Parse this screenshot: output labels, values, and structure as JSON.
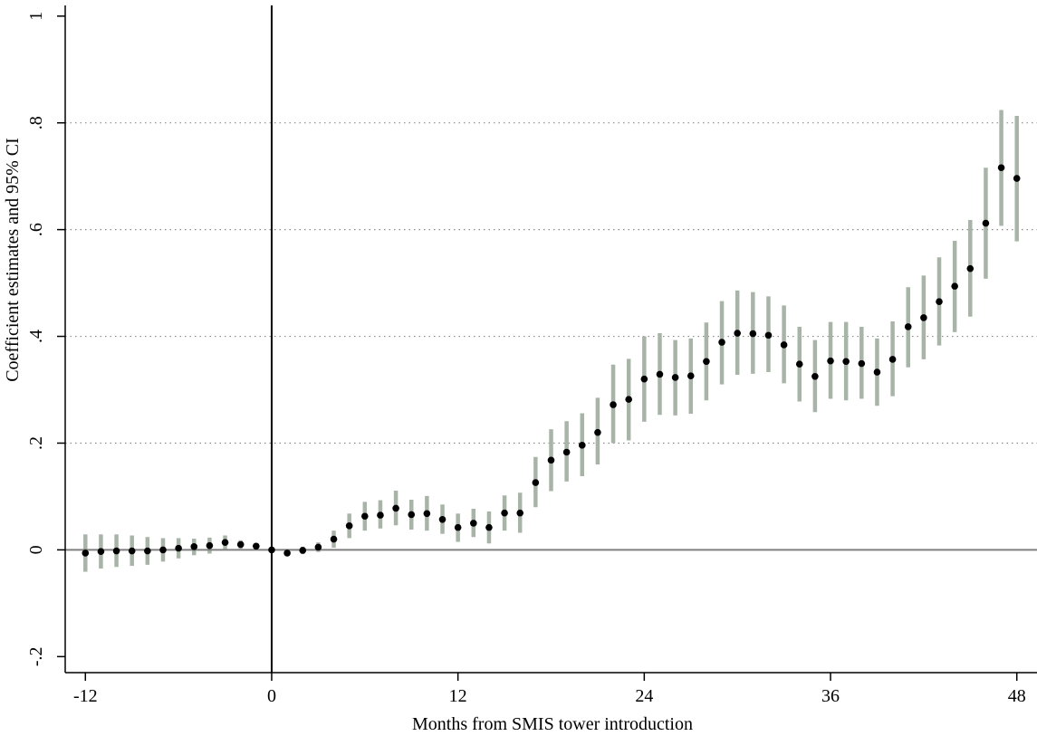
{
  "chart_data": {
    "type": "scatter",
    "title": "",
    "xlabel": "Months from SMIS tower introduction",
    "ylabel": "Coefficient estimates and 95% CI",
    "xlim": [
      -13.3,
      49.3
    ],
    "ylim": [
      -0.23,
      1.02
    ],
    "x_ticks": [
      -12,
      0,
      12,
      24,
      36,
      48
    ],
    "y_ticks": [
      -0.2,
      0,
      0.2,
      0.4,
      0.6,
      0.8,
      1
    ],
    "y_tick_labels": [
      "-.2",
      "0",
      ".2",
      ".4",
      ".6",
      ".8",
      "1"
    ],
    "grid": {
      "horizontal_dotted_at": [
        0.2,
        0.4,
        0.6,
        0.8
      ]
    },
    "reference_lines": {
      "x": 0,
      "y": 0
    },
    "colors": {
      "point": "#000000",
      "ci_bar": "#a9b4a9",
      "zero_line": "#7f7f7f",
      "grid": "#8a8a8a"
    },
    "series": [
      {
        "x": [
          -12,
          -11,
          -10,
          -9,
          -8,
          -7,
          -6,
          -5,
          -4,
          -3,
          -2,
          -1,
          0,
          1,
          2,
          3,
          4,
          5,
          6,
          7,
          8,
          9,
          10,
          11,
          12,
          13,
          14,
          15,
          16,
          17,
          18,
          19,
          20,
          21,
          22,
          23,
          24,
          25,
          26,
          27,
          28,
          29,
          30,
          31,
          32,
          33,
          34,
          35,
          36,
          37,
          38,
          39,
          40,
          41,
          42,
          43,
          44,
          45,
          46,
          47,
          48
        ],
        "y": [
          -0.006,
          -0.003,
          -0.002,
          -0.002,
          -0.002,
          0.0,
          0.003,
          0.006,
          0.008,
          0.014,
          0.01,
          0.007,
          0.0,
          -0.006,
          -0.001,
          0.005,
          0.02,
          0.045,
          0.063,
          0.065,
          0.078,
          0.066,
          0.068,
          0.057,
          0.042,
          0.05,
          0.042,
          0.069,
          0.069,
          0.126,
          0.168,
          0.183,
          0.196,
          0.22,
          0.272,
          0.282,
          0.32,
          0.329,
          0.323,
          0.326,
          0.353,
          0.389,
          0.406,
          0.405,
          0.402,
          0.384,
          0.348,
          0.325,
          0.354,
          0.353,
          0.349,
          0.333,
          0.357,
          0.418,
          0.435,
          0.465,
          0.494,
          0.527,
          0.612,
          0.716,
          0.696
        ],
        "ci_low": [
          -0.041,
          -0.035,
          -0.032,
          -0.03,
          -0.028,
          -0.022,
          -0.016,
          -0.01,
          -0.007,
          0.001,
          0.002,
          0.002,
          0.0,
          -0.008,
          -0.008,
          -0.004,
          0.004,
          0.022,
          0.036,
          0.04,
          0.046,
          0.038,
          0.036,
          0.03,
          0.015,
          0.024,
          0.012,
          0.036,
          0.032,
          0.08,
          0.11,
          0.128,
          0.138,
          0.16,
          0.2,
          0.205,
          0.24,
          0.253,
          0.252,
          0.255,
          0.28,
          0.31,
          0.328,
          0.33,
          0.333,
          0.312,
          0.278,
          0.258,
          0.283,
          0.28,
          0.283,
          0.27,
          0.288,
          0.342,
          0.357,
          0.383,
          0.408,
          0.437,
          0.508,
          0.607,
          0.578
        ],
        "ci_high": [
          0.029,
          0.029,
          0.029,
          0.027,
          0.024,
          0.022,
          0.022,
          0.021,
          0.023,
          0.027,
          0.018,
          0.012,
          0.0,
          -0.004,
          0.006,
          0.014,
          0.036,
          0.068,
          0.09,
          0.093,
          0.111,
          0.094,
          0.101,
          0.085,
          0.068,
          0.077,
          0.072,
          0.102,
          0.107,
          0.174,
          0.226,
          0.241,
          0.256,
          0.285,
          0.347,
          0.358,
          0.4,
          0.406,
          0.393,
          0.396,
          0.426,
          0.466,
          0.486,
          0.483,
          0.475,
          0.458,
          0.418,
          0.393,
          0.427,
          0.427,
          0.418,
          0.396,
          0.428,
          0.492,
          0.514,
          0.548,
          0.579,
          0.618,
          0.716,
          0.824,
          0.813
        ]
      }
    ]
  }
}
